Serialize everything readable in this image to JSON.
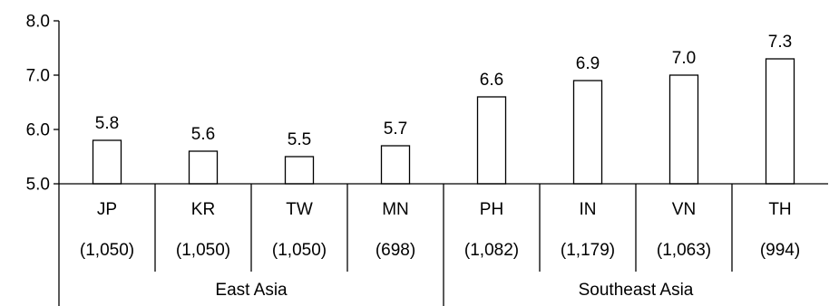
{
  "chart_data": {
    "type": "bar",
    "categories": [
      "JP",
      "KR",
      "TW",
      "MN",
      "PH",
      "IN",
      "VN",
      "TH"
    ],
    "sample_sizes": [
      "(1,050)",
      "(1,050)",
      "(1,050)",
      "(698)",
      "(1,082)",
      "(1,179)",
      "(1,063)",
      "(994)"
    ],
    "groups": [
      {
        "label": "East Asia",
        "categories": [
          "JP",
          "KR",
          "TW",
          "MN"
        ]
      },
      {
        "label": "Southeast Asia",
        "categories": [
          "PH",
          "IN",
          "VN",
          "TH"
        ]
      }
    ],
    "values": [
      5.8,
      5.6,
      5.5,
      5.7,
      6.6,
      6.9,
      7.0,
      7.3
    ],
    "data_labels": [
      "5.8",
      "5.6",
      "5.5",
      "5.7",
      "6.6",
      "6.9",
      "7.0",
      "7.3"
    ],
    "yticks": [
      "5.0",
      "6.0",
      "7.0",
      "8.0"
    ],
    "ylim": [
      5.0,
      8.0
    ],
    "title": "",
    "xlabel": "",
    "ylabel": "",
    "grid": false,
    "legend": "none",
    "bar_fill": "#ffffff",
    "bar_stroke": "#000000"
  }
}
